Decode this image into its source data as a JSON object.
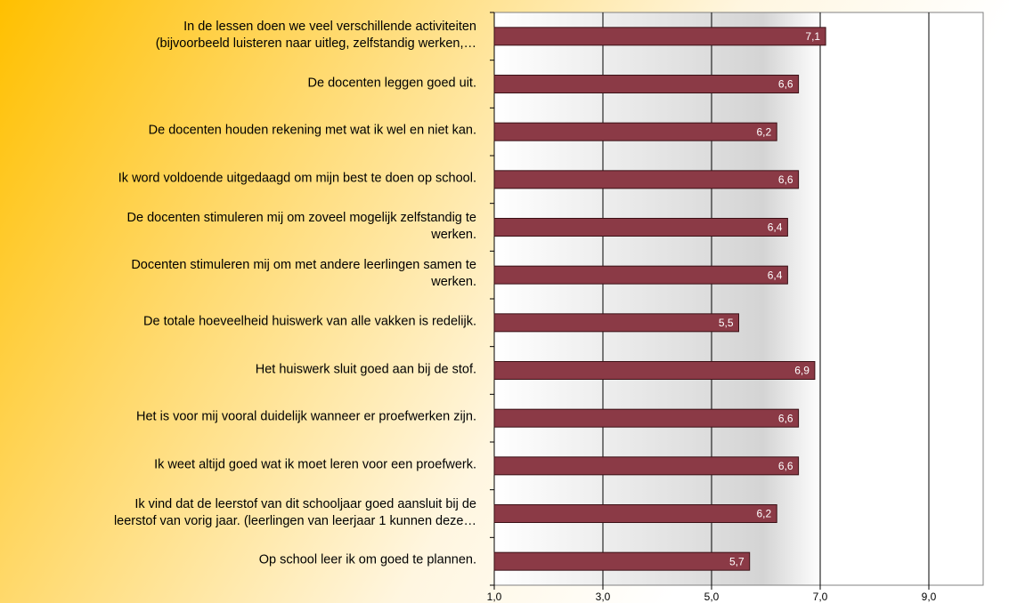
{
  "chart_data": {
    "type": "hbar",
    "categories": [
      "In de lessen doen we veel verschillende activiteiten\n(bijvoorbeeld luisteren naar uitleg, zelfstandig werken,…",
      "De docenten leggen goed uit.",
      "De docenten houden rekening met wat ik wel en niet kan.",
      "Ik word voldoende uitgedaagd om mijn best te doen op school.",
      "De docenten stimuleren mij om zoveel mogelijk zelfstandig te\nwerken.",
      "Docenten stimuleren mij om met andere leerlingen samen te\nwerken.",
      "De totale hoeveelheid huiswerk van alle vakken is redelijk.",
      "Het huiswerk sluit goed aan bij de stof.",
      "Het is voor mij vooral duidelijk wanneer er proefwerken zijn.",
      "Ik weet altijd goed wat ik moet leren voor een proefwerk.",
      "Ik vind dat de leerstof van dit schooljaar goed aansluit bij de\nleerstof van vorig jaar. (leerlingen van leerjaar 1 kunnen deze…",
      "Op school leer ik om goed te plannen."
    ],
    "values": [
      7.1,
      6.6,
      6.2,
      6.6,
      6.4,
      6.4,
      5.5,
      6.9,
      6.6,
      6.6,
      6.2,
      5.7
    ],
    "value_labels": [
      "7,1",
      "6,6",
      "6,2",
      "6,6",
      "6,4",
      "6,4",
      "5,5",
      "6,9",
      "6,6",
      "6,6",
      "6,2",
      "5,7"
    ],
    "color": "#8b3a46",
    "xlim": [
      1,
      10
    ],
    "xticks": [
      {
        "value": 1,
        "label": "1,0"
      },
      {
        "value": 3,
        "label": "3,0"
      },
      {
        "value": 5,
        "label": "5,0"
      },
      {
        "value": 7,
        "label": "7,0"
      },
      {
        "value": 9,
        "label": "9,0"
      }
    ],
    "grid": true
  }
}
